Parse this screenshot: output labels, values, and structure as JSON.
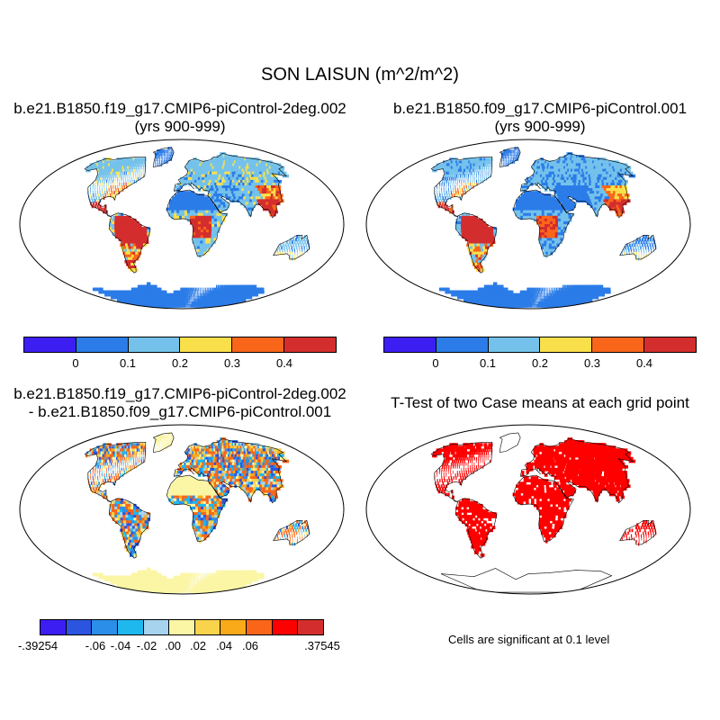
{
  "title": "SON LAISUN (m^2/m^2)",
  "panels": [
    {
      "line1": "b.e21.B1850.f19_g17.CMIP6-piControl-2deg.002",
      "line2": "(yrs 900-999)"
    },
    {
      "line1": "b.e21.B1850.f09_g17.CMIP6-piControl.001",
      "line2": "(yrs 900-999)"
    },
    {
      "line1": "b.e21.B1850.f19_g17.CMIP6-piControl-2deg.002",
      "line2": "- b.e21.B1850.f09_g17.CMIP6-piControl.001"
    },
    {
      "line1": "T-Test of two Case means at each grid point"
    }
  ],
  "colorbar_top": {
    "colors": [
      "#3d1ef2",
      "#2b7ce8",
      "#74c2ec",
      "#f9e04b",
      "#f9661a",
      "#d42d2d"
    ],
    "labels": [
      "0",
      "0.1",
      "0.2",
      "0.3",
      "0.4"
    ]
  },
  "colorbar_diff": {
    "colors": [
      "#3d1ef2",
      "#2b55e0",
      "#2b8ee8",
      "#1fb8ee",
      "#a6d3ee",
      "#fbf6a5",
      "#f9d34b",
      "#f9aa19",
      "#f9661a",
      "#ff0000",
      "#d42d2d"
    ],
    "labels": [
      "-.39254",
      "-.06",
      "-.04",
      "-.02",
      ".00",
      ".02",
      ".04",
      ".06",
      ".37545"
    ]
  },
  "ttest_note": "Cells are significant at 0.1 level",
  "colors": {
    "significant": "#ff0000",
    "ocean": "#ffffff",
    "coast": "#000000"
  }
}
